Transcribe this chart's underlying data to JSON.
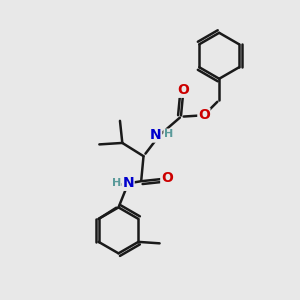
{
  "bg_color": "#e8e8e8",
  "bond_color": "#1a1a1a",
  "oxygen_color": "#cc0000",
  "nitrogen_color": "#0000cc",
  "hydrogen_color": "#5a9a9a",
  "line_width": 1.8,
  "font_size_atom": 10,
  "figsize": [
    3.0,
    3.0
  ],
  "dpi": 100,
  "xlim": [
    0,
    10
  ],
  "ylim": [
    0,
    10
  ]
}
